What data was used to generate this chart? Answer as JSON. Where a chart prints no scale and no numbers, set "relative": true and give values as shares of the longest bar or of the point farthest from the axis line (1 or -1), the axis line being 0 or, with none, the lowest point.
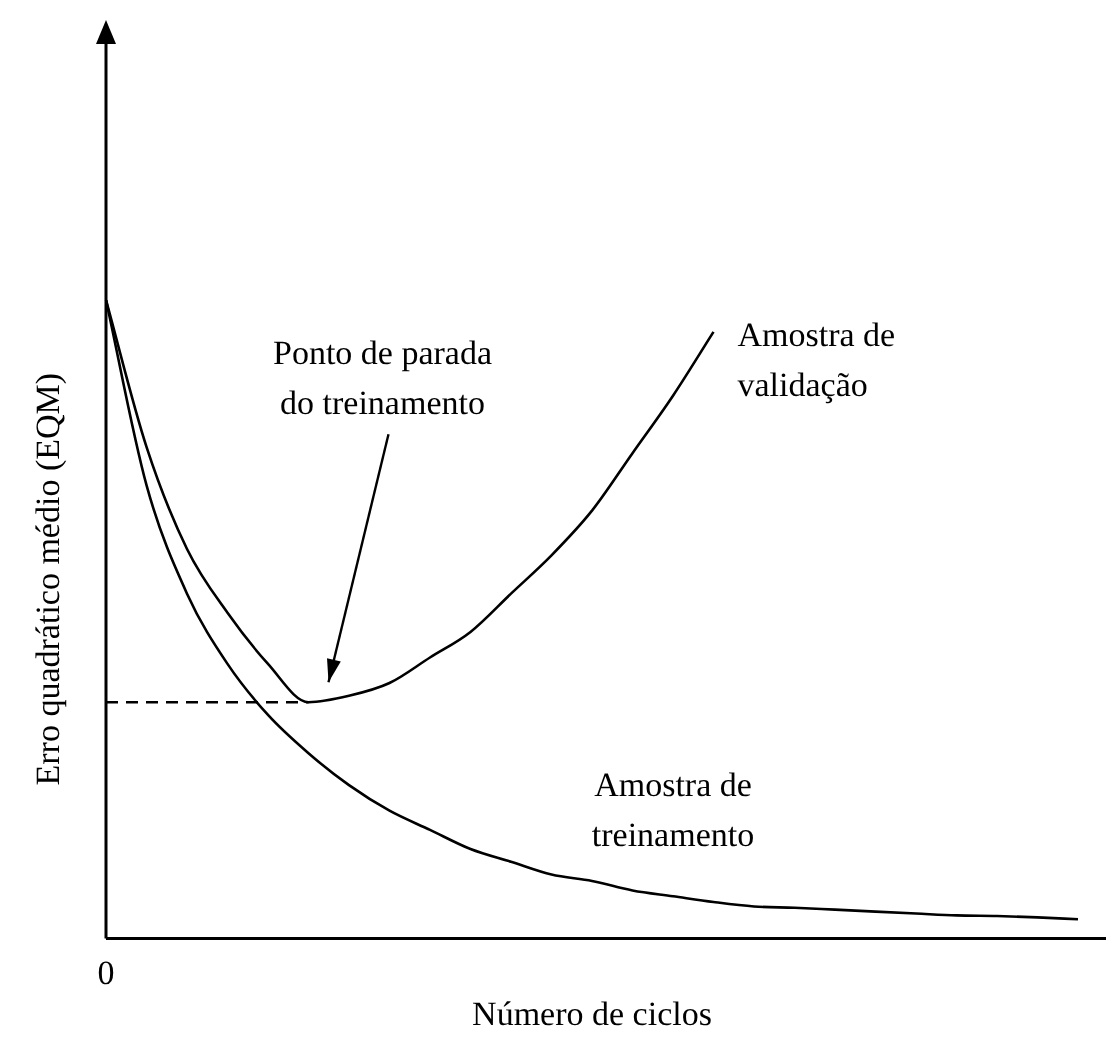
{
  "chart_data": {
    "type": "line",
    "relative": true,
    "xlabel": "Número de ciclos",
    "ylabel": "Erro quadrático médio (EQM)",
    "categories": [
      null,
      null,
      null,
      null,
      null,
      null,
      null,
      null,
      null,
      null,
      null,
      null,
      null,
      null,
      null,
      null,
      null,
      null,
      null,
      null,
      null,
      null,
      null,
      null,
      null
    ],
    "series": [
      {
        "name": "Amostra de validação",
        "color": "#000000",
        "values": [
          1.0,
          0.77,
          0.61,
          0.51,
          0.43,
          0.37,
          0.38,
          0.4,
          0.44,
          0.48,
          0.54,
          0.6,
          0.67,
          0.76,
          0.85,
          0.95,
          null,
          null,
          null,
          null,
          null,
          null,
          null,
          null,
          null
        ]
      },
      {
        "name": "Amostra de treinamento",
        "color": "#000000",
        "values": [
          1.0,
          0.71,
          0.54,
          0.43,
          0.35,
          0.29,
          0.24,
          0.2,
          0.17,
          0.14,
          0.12,
          0.1,
          0.09,
          0.075,
          0.066,
          0.057,
          0.05,
          0.048,
          0.045,
          0.042,
          0.039,
          0.036,
          0.035,
          0.033,
          0.03
        ]
      }
    ],
    "ref_lines": [
      {
        "axis": "y",
        "value": 0.37,
        "line_style": "dashed"
      }
    ],
    "annotations": [
      "Ponto de parada do treinamento",
      "0"
    ],
    "marker": "none",
    "grid": false,
    "legend": false
  }
}
